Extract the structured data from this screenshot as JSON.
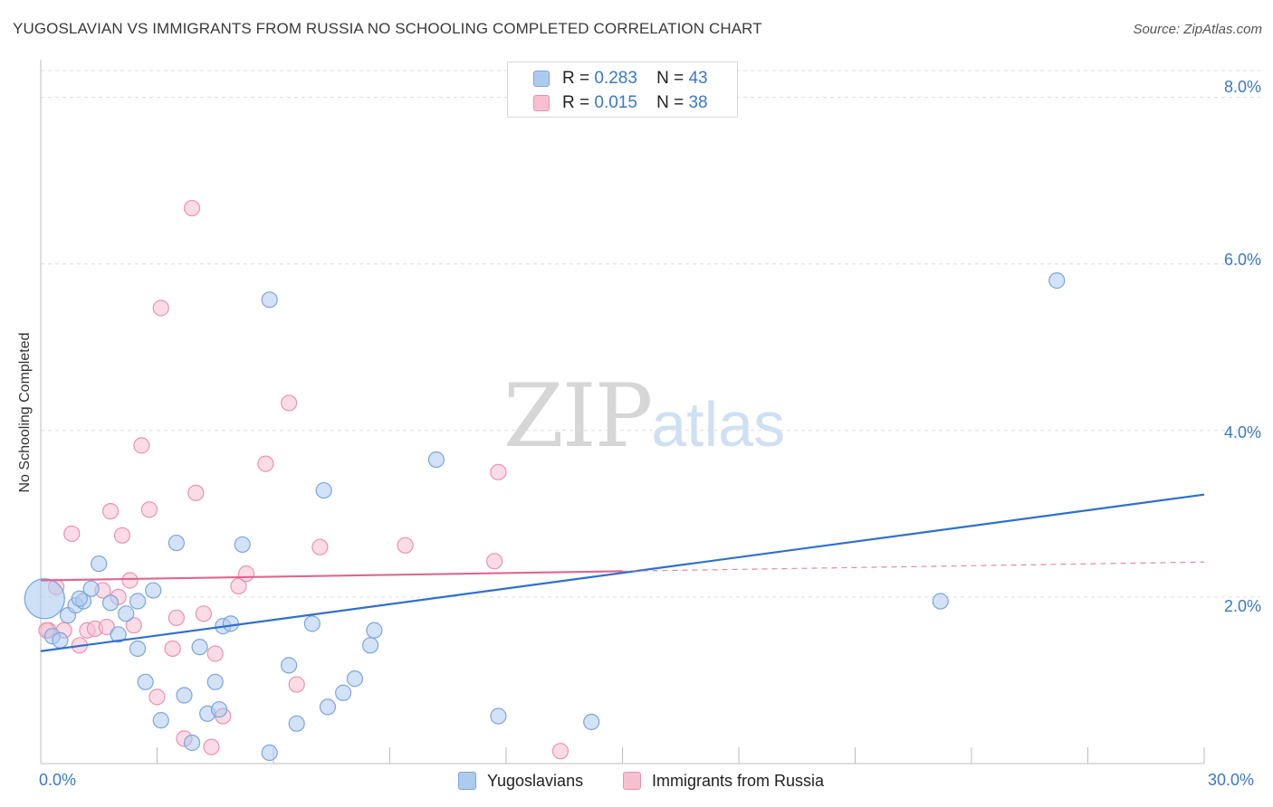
{
  "header": {
    "title": "YUGOSLAVIAN VS IMMIGRANTS FROM RUSSIA NO SCHOOLING COMPLETED CORRELATION CHART",
    "source": "Source: ZipAtlas.com"
  },
  "watermark": {
    "zip": "ZIP",
    "atlas": "atlas"
  },
  "legend": {
    "rows": [
      {
        "r_label": "R =",
        "r_value": "0.283",
        "n_label": "N =",
        "n_value": "43"
      },
      {
        "r_label": "R =",
        "r_value": "0.015",
        "n_label": "N =",
        "n_value": "38"
      }
    ]
  },
  "chart_data": {
    "type": "scatter",
    "title": "YUGOSLAVIAN VS IMMIGRANTS FROM RUSSIA NO SCHOOLING COMPLETED CORRELATION CHART",
    "xlabel": "",
    "ylabel": "No Schooling Completed",
    "xlim": [
      0,
      30
    ],
    "ylim": [
      0,
      8.3
    ],
    "x_tick_labels": [
      "0.0%",
      "30.0%"
    ],
    "y_ticks": [
      2,
      4,
      6,
      8
    ],
    "y_tick_labels": [
      "2.0%",
      "4.0%",
      "6.0%",
      "8.0%"
    ],
    "grid": true,
    "legend_position": "top-center",
    "colors": {
      "yugoslavians_fill": "#aecbef",
      "yugoslavians_stroke": "#7aa6dc",
      "yugoslavians_line": "#2f6fcf",
      "russia_fill": "#f7c0d1",
      "russia_stroke": "#ea92b0",
      "russia_line": "#e0668f"
    },
    "series": [
      {
        "name": "Yugoslavians",
        "r": 0.283,
        "n": 43,
        "trend": {
          "x": [
            0,
            30
          ],
          "y": [
            1.35,
            3.23
          ],
          "dashed_from": null
        },
        "points": [
          [
            0.1,
            1.98
          ],
          [
            0.3,
            1.53
          ],
          [
            0.5,
            1.48
          ],
          [
            0.7,
            1.78
          ],
          [
            0.9,
            1.9
          ],
          [
            1.1,
            1.95
          ],
          [
            1.3,
            2.1
          ],
          [
            1.5,
            2.4
          ],
          [
            1.8,
            1.93
          ],
          [
            2.0,
            1.55
          ],
          [
            2.2,
            1.8
          ],
          [
            2.5,
            1.38
          ],
          [
            2.7,
            0.98
          ],
          [
            2.9,
            2.08
          ],
          [
            3.1,
            0.52
          ],
          [
            3.5,
            2.65
          ],
          [
            3.7,
            0.82
          ],
          [
            3.9,
            0.25
          ],
          [
            4.1,
            1.4
          ],
          [
            4.3,
            0.6
          ],
          [
            4.5,
            0.98
          ],
          [
            4.6,
            0.65
          ],
          [
            4.7,
            1.65
          ],
          [
            4.9,
            1.68
          ],
          [
            5.2,
            2.63
          ],
          [
            5.9,
            5.57
          ],
          [
            5.9,
            0.13
          ],
          [
            6.4,
            1.18
          ],
          [
            6.6,
            0.48
          ],
          [
            7.0,
            1.68
          ],
          [
            7.4,
            0.68
          ],
          [
            7.3,
            3.28
          ],
          [
            7.8,
            0.85
          ],
          [
            8.1,
            1.02
          ],
          [
            8.5,
            1.42
          ],
          [
            8.6,
            1.6
          ],
          [
            10.2,
            3.65
          ],
          [
            11.8,
            0.57
          ],
          [
            14.2,
            0.5
          ],
          [
            23.2,
            1.95
          ],
          [
            26.2,
            5.8
          ],
          [
            2.5,
            1.95
          ],
          [
            1.0,
            1.98
          ]
        ]
      },
      {
        "name": "Immigrants from Russia",
        "r": 0.015,
        "n": 38,
        "trend": {
          "x": [
            0,
            30
          ],
          "y": [
            2.2,
            2.42
          ],
          "dashed_from": 15
        },
        "points": [
          [
            0.2,
            1.6
          ],
          [
            0.4,
            2.12
          ],
          [
            0.6,
            1.6
          ],
          [
            0.8,
            2.76
          ],
          [
            1.0,
            1.42
          ],
          [
            1.2,
            1.6
          ],
          [
            1.4,
            1.62
          ],
          [
            1.6,
            2.08
          ],
          [
            1.7,
            1.64
          ],
          [
            1.8,
            3.03
          ],
          [
            2.1,
            2.74
          ],
          [
            2.3,
            2.2
          ],
          [
            2.4,
            1.66
          ],
          [
            2.6,
            3.82
          ],
          [
            2.8,
            3.05
          ],
          [
            3.0,
            0.8
          ],
          [
            3.1,
            5.47
          ],
          [
            3.4,
            1.38
          ],
          [
            3.5,
            1.75
          ],
          [
            3.7,
            0.3
          ],
          [
            3.9,
            6.67
          ],
          [
            4.0,
            3.25
          ],
          [
            4.2,
            1.8
          ],
          [
            4.4,
            0.2
          ],
          [
            4.5,
            1.32
          ],
          [
            4.7,
            0.57
          ],
          [
            5.1,
            2.13
          ],
          [
            5.3,
            2.28
          ],
          [
            5.8,
            3.6
          ],
          [
            6.6,
            0.95
          ],
          [
            6.4,
            4.33
          ],
          [
            7.2,
            2.6
          ],
          [
            9.4,
            2.62
          ],
          [
            11.7,
            2.43
          ],
          [
            11.8,
            3.5
          ],
          [
            13.4,
            0.15
          ],
          [
            0.15,
            1.6
          ],
          [
            2.0,
            2.0
          ]
        ]
      }
    ]
  },
  "bottom_legend": {
    "items": [
      {
        "label": "Yugoslavians"
      },
      {
        "label": "Immigrants from Russia"
      }
    ]
  }
}
